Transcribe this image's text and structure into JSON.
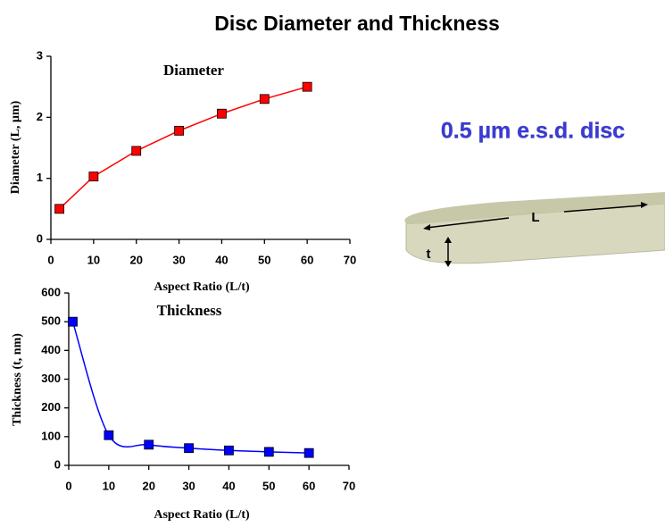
{
  "title": "Disc Diameter and Thickness",
  "chart_data": [
    {
      "type": "line",
      "title": "Diameter",
      "x_label": "Aspect Ratio (L/t)",
      "y_label": "Diameter (L, µm)",
      "x": [
        2,
        10,
        20,
        30,
        40,
        50,
        60
      ],
      "series": [
        {
          "color": "#ff0000",
          "values": [
            0.5,
            1.03,
            1.45,
            1.78,
            2.06,
            2.3,
            2.5
          ]
        }
      ],
      "xlim": [
        0,
        70
      ],
      "xticks": [
        0,
        10,
        20,
        30,
        40,
        50,
        60,
        70
      ],
      "ylim": [
        0,
        3
      ],
      "yticks": [
        0,
        1,
        2,
        3
      ],
      "marker": "square",
      "smooth": false
    },
    {
      "type": "line",
      "title": "Thickness",
      "x_label": "Aspect Ratio (L/t)",
      "y_label": "Thickness (t, nm)",
      "x": [
        1,
        10,
        20,
        30,
        40,
        50,
        60
      ],
      "series": [
        {
          "color": "#0000ff",
          "values": [
            500,
            105,
            72,
            60,
            52,
            47,
            43
          ]
        }
      ],
      "xlim": [
        0,
        70
      ],
      "xticks": [
        0,
        10,
        20,
        30,
        40,
        50,
        60,
        70
      ],
      "ylim": [
        0,
        600
      ],
      "yticks": [
        0,
        100,
        200,
        300,
        400,
        500,
        600
      ],
      "marker": "square",
      "smooth": true
    }
  ],
  "disc": {
    "label": "0.5 µm e.s.d. disc",
    "length_label": "L",
    "thickness_label": "t"
  }
}
